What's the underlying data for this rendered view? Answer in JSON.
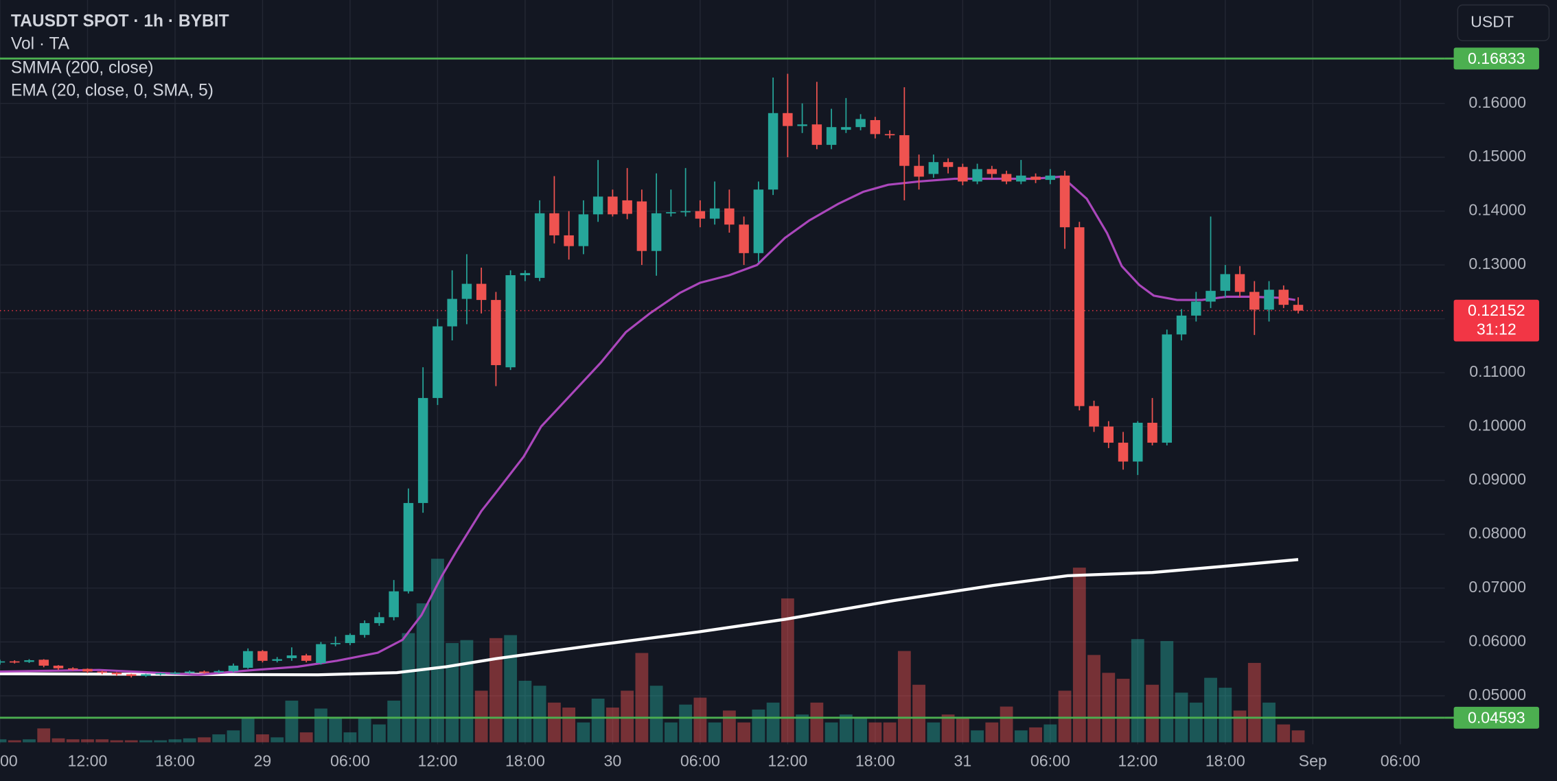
{
  "chart_data": {
    "type": "candlestick",
    "title": "TAUSDT SPOT · 1h · BYBIT",
    "currency": "USDT",
    "up_color": "#26a69a",
    "down_color": "#ef5350",
    "grid": true,
    "xlim": [
      0,
      99.05
    ],
    "ylim": [
      0.041,
      0.1792
    ],
    "xticks": [
      {
        "value": 0,
        "label": "00"
      },
      {
        "value": 6,
        "label": "12:00"
      },
      {
        "value": 12,
        "label": "18:00"
      },
      {
        "value": 18,
        "label": "29"
      },
      {
        "value": 24,
        "label": "06:00"
      },
      {
        "value": 30,
        "label": "12:00"
      },
      {
        "value": 36,
        "label": "18:00"
      },
      {
        "value": 42,
        "label": "30"
      },
      {
        "value": 48,
        "label": "06:00"
      },
      {
        "value": 54,
        "label": "12:00"
      },
      {
        "value": 60,
        "label": "18:00"
      },
      {
        "value": 66,
        "label": "31"
      },
      {
        "value": 72,
        "label": "06:00"
      },
      {
        "value": 78,
        "label": "12:00"
      },
      {
        "value": 84,
        "label": "18:00"
      },
      {
        "value": 90,
        "label": "Sep"
      },
      {
        "value": 96,
        "label": "06:00"
      }
    ],
    "yticks": [
      {
        "value": 0.05,
        "label": "0.05000"
      },
      {
        "value": 0.06,
        "label": "0.06000"
      },
      {
        "value": 0.07,
        "label": "0.07000"
      },
      {
        "value": 0.08,
        "label": "0.08000"
      },
      {
        "value": 0.09,
        "label": "0.09000"
      },
      {
        "value": 0.1,
        "label": "0.10000"
      },
      {
        "value": 0.11,
        "label": "0.11000"
      },
      {
        "value": 0.12,
        "label": "0.12000"
      },
      {
        "value": 0.13,
        "label": "0.13000"
      },
      {
        "value": 0.14,
        "label": "0.14000"
      },
      {
        "value": 0.15,
        "label": "0.15000"
      },
      {
        "value": 0.16,
        "label": "0.16000"
      }
    ],
    "x": [
      0,
      1,
      2,
      3,
      4,
      5,
      6,
      7,
      8,
      9,
      10,
      11,
      12,
      13,
      14,
      15,
      16,
      17,
      18,
      19,
      20,
      21,
      22,
      23,
      24,
      25,
      26,
      27,
      28,
      29,
      30,
      31,
      32,
      33,
      34,
      35,
      36,
      37,
      38,
      39,
      40,
      41,
      42,
      43,
      44,
      45,
      46,
      47,
      48,
      49,
      50,
      51,
      52,
      53,
      54,
      55,
      56,
      57,
      58,
      59,
      60,
      61,
      62,
      63,
      64,
      65,
      66,
      67,
      68,
      69,
      70,
      71,
      72,
      73,
      74,
      75,
      76,
      77,
      78,
      79,
      80,
      81,
      82,
      83,
      84,
      85,
      86,
      87,
      88,
      89
    ],
    "open": [
      0.0562,
      0.0564,
      0.0563,
      0.0567,
      0.0556,
      0.0551,
      0.055,
      0.0545,
      0.0543,
      0.054,
      0.0537,
      0.054,
      0.0542,
      0.0543,
      0.0545,
      0.0544,
      0.0546,
      0.0552,
      0.0583,
      0.0565,
      0.057,
      0.0575,
      0.0561,
      0.0596,
      0.0598,
      0.0613,
      0.0635,
      0.0646,
      0.0694,
      0.0858,
      0.1053,
      0.1186,
      0.1237,
      0.1265,
      0.1235,
      0.111,
      0.1281,
      0.1276,
      0.1396,
      0.1355,
      0.1335,
      0.1394,
      0.1427,
      0.142,
      0.1418,
      0.1326,
      0.1396,
      0.1398,
      0.14,
      0.1386,
      0.1405,
      0.1375,
      0.1322,
      0.144,
      0.1582,
      0.1558,
      0.1561,
      0.1523,
      0.1551,
      0.1556,
      0.1569,
      0.1543,
      0.1541,
      0.1484,
      0.1469,
      0.1491,
      0.1482,
      0.1455,
      0.1478,
      0.1469,
      0.1455,
      0.1464,
      0.1458,
      0.1466,
      0.137,
      0.1038,
      0.1,
      0.097,
      0.0935,
      0.1007,
      0.097,
      0.1171,
      0.1206,
      0.1232,
      0.1252,
      0.1283,
      0.125,
      0.1217,
      0.1254,
      0.1226
    ],
    "high": [
      0.0567,
      0.0566,
      0.0568,
      0.0568,
      0.0557,
      0.0553,
      0.0551,
      0.0547,
      0.0544,
      0.0541,
      0.0541,
      0.0543,
      0.0545,
      0.0547,
      0.0547,
      0.0548,
      0.056,
      0.0588,
      0.0585,
      0.0572,
      0.059,
      0.0578,
      0.06,
      0.061,
      0.0616,
      0.064,
      0.0655,
      0.0715,
      0.0885,
      0.111,
      0.12,
      0.129,
      0.132,
      0.1295,
      0.125,
      0.129,
      0.129,
      0.142,
      0.1465,
      0.14,
      0.142,
      0.1495,
      0.144,
      0.148,
      0.144,
      0.147,
      0.144,
      0.148,
      0.142,
      0.1455,
      0.144,
      0.139,
      0.1455,
      0.1648,
      0.1655,
      0.16,
      0.164,
      0.159,
      0.161,
      0.158,
      0.1575,
      0.155,
      0.163,
      0.1505,
      0.1505,
      0.1498,
      0.1488,
      0.1488,
      0.1484,
      0.1475,
      0.1495,
      0.147,
      0.1478,
      0.1475,
      0.138,
      0.1048,
      0.101,
      0.099,
      0.101,
      0.1053,
      0.118,
      0.1218,
      0.125,
      0.139,
      0.13,
      0.1298,
      0.127,
      0.127,
      0.1262,
      0.124
    ],
    "low": [
      0.0558,
      0.056,
      0.0561,
      0.0553,
      0.0548,
      0.0547,
      0.0542,
      0.054,
      0.0537,
      0.0534,
      0.0535,
      0.0538,
      0.054,
      0.0541,
      0.0541,
      0.0542,
      0.0544,
      0.055,
      0.0562,
      0.0562,
      0.0565,
      0.0562,
      0.0558,
      0.0592,
      0.0594,
      0.0608,
      0.063,
      0.064,
      0.069,
      0.084,
      0.104,
      0.116,
      0.119,
      0.121,
      0.1075,
      0.1105,
      0.127,
      0.127,
      0.134,
      0.131,
      0.132,
      0.138,
      0.139,
      0.1385,
      0.13,
      0.128,
      0.139,
      0.139,
      0.137,
      0.1375,
      0.136,
      0.13,
      0.1305,
      0.143,
      0.15,
      0.1545,
      0.1515,
      0.1515,
      0.1545,
      0.155,
      0.1535,
      0.1535,
      0.142,
      0.144,
      0.1462,
      0.147,
      0.1448,
      0.145,
      0.146,
      0.145,
      0.145,
      0.1452,
      0.145,
      0.133,
      0.103,
      0.099,
      0.096,
      0.092,
      0.091,
      0.0965,
      0.0965,
      0.116,
      0.1195,
      0.122,
      0.124,
      0.124,
      0.117,
      0.1195,
      0.122,
      0.121
    ],
    "close": [
      0.0564,
      0.0563,
      0.0566,
      0.0556,
      0.0551,
      0.055,
      0.0545,
      0.0543,
      0.054,
      0.0537,
      0.054,
      0.0542,
      0.0543,
      0.0545,
      0.0544,
      0.0546,
      0.0556,
      0.0583,
      0.0565,
      0.0568,
      0.0575,
      0.0565,
      0.0596,
      0.0598,
      0.0613,
      0.0635,
      0.0646,
      0.0694,
      0.0858,
      0.1053,
      0.1186,
      0.1237,
      0.1265,
      0.1235,
      0.1114,
      0.1281,
      0.1285,
      0.1396,
      0.1355,
      0.1335,
      0.1394,
      0.1427,
      0.1394,
      0.1395,
      0.1326,
      0.1396,
      0.1398,
      0.14,
      0.1386,
      0.1405,
      0.1375,
      0.1322,
      0.144,
      0.1582,
      0.1558,
      0.1561,
      0.1523,
      0.1556,
      0.1556,
      0.1571,
      0.1543,
      0.1541,
      0.1484,
      0.1464,
      0.1491,
      0.1482,
      0.1455,
      0.1478,
      0.1469,
      0.1455,
      0.1466,
      0.1458,
      0.1466,
      0.137,
      0.1038,
      0.1,
      0.097,
      0.0935,
      0.1007,
      0.097,
      0.1171,
      0.1206,
      0.1232,
      0.1252,
      0.1283,
      0.125,
      0.1217,
      0.1254,
      0.1226,
      0.12152
    ],
    "volume": {
      "name": "Vol · TA",
      "values": [
        3,
        2,
        3,
        14,
        4,
        3,
        3,
        3,
        2,
        2,
        2,
        2,
        3,
        4,
        5,
        8,
        12,
        25,
        8,
        5,
        42,
        10,
        34,
        25,
        10,
        25,
        18,
        42,
        110,
        140,
        185,
        100,
        103,
        52,
        105,
        108,
        62,
        57,
        40,
        35,
        20,
        44,
        35,
        52,
        90,
        57,
        20,
        38,
        45,
        20,
        32,
        20,
        33,
        40,
        145,
        28,
        40,
        20,
        28,
        25,
        20,
        20,
        92,
        58,
        20,
        28,
        25,
        12,
        20,
        36,
        12,
        15,
        18,
        52,
        176,
        88,
        70,
        64,
        104,
        58,
        102,
        50,
        40,
        65,
        55,
        32,
        80,
        40,
        18,
        12
      ]
    },
    "series": [
      {
        "name": "SMMA (200, close)",
        "color": "#ffffff",
        "x": [
          0,
          21.8,
          27.2,
          30.6,
          34,
          40.8,
          47.7,
          53.8,
          61.3,
          68.1,
          73.2,
          79,
          83.7,
          89
        ],
        "values": [
          0.0541,
          0.0539,
          0.0543,
          0.0554,
          0.0569,
          0.0594,
          0.0618,
          0.0642,
          0.0677,
          0.0705,
          0.0723,
          0.0729,
          0.074,
          0.0753
        ]
      },
      {
        "name": "EMA (20, close, 0, SMA, 5)",
        "color": "#ab47bc",
        "x": [
          0,
          6.8,
          13.6,
          17,
          20.4,
          23.1,
          25.9,
          27.6,
          28.9,
          30.3,
          31.3,
          33,
          33.9,
          35.9,
          37.1,
          39,
          41.2,
          42.9,
          44.6,
          46.6,
          48,
          50,
          51.9,
          53.8,
          55.5,
          57.5,
          59.2,
          60.9,
          63,
          65.4,
          68.1,
          70.8,
          72.8,
          74.5,
          75.9,
          76.9,
          78.1,
          79.1,
          80.7,
          82.4,
          84.1,
          85.8,
          87.8,
          88.8
        ],
        "values": [
          0.0545,
          0.0548,
          0.0539,
          0.0547,
          0.0554,
          0.0565,
          0.058,
          0.0604,
          0.065,
          0.0723,
          0.0769,
          0.0843,
          0.0874,
          0.0944,
          0.1,
          0.1055,
          0.1119,
          0.1175,
          0.1211,
          0.1248,
          0.1267,
          0.1281,
          0.13,
          0.135,
          0.1383,
          0.1414,
          0.1436,
          0.1449,
          0.1455,
          0.146,
          0.146,
          0.146,
          0.1464,
          0.1423,
          0.1359,
          0.1298,
          0.1263,
          0.1243,
          0.1235,
          0.1235,
          0.1241,
          0.1241,
          0.1239,
          0.1235
        ]
      }
    ],
    "hlines": [
      {
        "value": 0.16833,
        "color": "#4caf50"
      },
      {
        "value": 0.04593,
        "color": "#4caf50"
      }
    ],
    "last_price": {
      "value": 0.12152,
      "countdown": "31:12",
      "color": "#f23645"
    }
  }
}
